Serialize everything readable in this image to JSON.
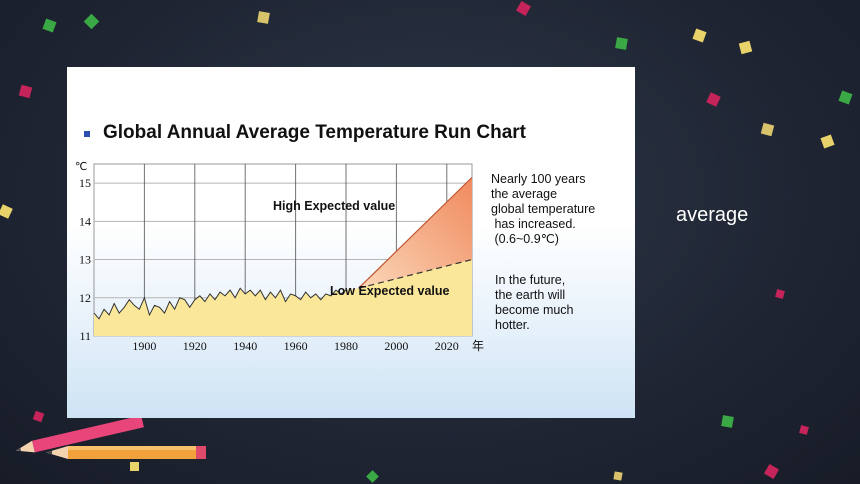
{
  "slide": {
    "side_word": "average",
    "background_color": "#1f2533"
  },
  "chart_data": {
    "type": "area",
    "title": "Global Annual Average Temperature Run Chart",
    "y_unit": "℃",
    "x_unit": "年",
    "xlim": [
      1880,
      2030
    ],
    "ylim": [
      11,
      15.5
    ],
    "x_ticks": [
      1900,
      1920,
      1940,
      1960,
      1980,
      2000,
      2020
    ],
    "y_ticks": [
      11,
      12,
      13,
      14,
      15
    ],
    "series": [
      {
        "x": [
          1880,
          1882,
          1884,
          1886,
          1888,
          1890,
          1892,
          1894,
          1896,
          1898,
          1900,
          1902,
          1904,
          1906,
          1908,
          1910,
          1912,
          1914,
          1916,
          1918,
          1920,
          1922,
          1924,
          1926,
          1928,
          1930,
          1932,
          1934,
          1936,
          1938,
          1940,
          1942,
          1944,
          1946,
          1948,
          1950,
          1952,
          1954,
          1956,
          1958,
          1960,
          1962,
          1964,
          1966,
          1968,
          1970,
          1972,
          1974,
          1976,
          1978,
          1980
        ],
        "values": [
          11.6,
          11.45,
          11.7,
          11.55,
          11.85,
          11.6,
          11.75,
          11.95,
          11.8,
          11.7,
          12.0,
          11.55,
          11.8,
          11.75,
          11.6,
          11.9,
          11.7,
          12.0,
          11.95,
          11.75,
          11.95,
          12.05,
          11.9,
          12.1,
          11.95,
          12.15,
          12.05,
          12.2,
          12.0,
          12.25,
          12.1,
          12.2,
          12.05,
          12.2,
          11.95,
          12.15,
          12.0,
          12.2,
          11.9,
          12.1,
          12.05,
          11.95,
          12.15,
          12.0,
          12.1,
          11.95,
          12.1,
          12.05,
          12.2,
          12.1,
          12.2
        ]
      }
    ],
    "projections": [
      {
        "label": "High Expected value",
        "x": [
          1985,
          2030
        ],
        "values": [
          12.25,
          15.15
        ]
      },
      {
        "label": "Low Expected value",
        "x": [
          1985,
          2030
        ],
        "values": [
          12.25,
          13.0
        ]
      }
    ],
    "annotations": [
      "Nearly 100 years the average global temperature has increased. (0.6~0.9℃)",
      "In the future, the earth will become much hotter."
    ],
    "colors": {
      "history_fill": "#fbe79a",
      "history_line": "#333333",
      "high_fill": "#f08a5e",
      "bullet": "#2a4fb0"
    }
  },
  "notes": {
    "increase": [
      "Nearly 100 years",
      "the average",
      "global temperature",
      " has increased.",
      " (0.6~0.9℃)"
    ],
    "future": [
      "In the future,",
      "the earth will",
      "become much",
      "hotter."
    ]
  }
}
